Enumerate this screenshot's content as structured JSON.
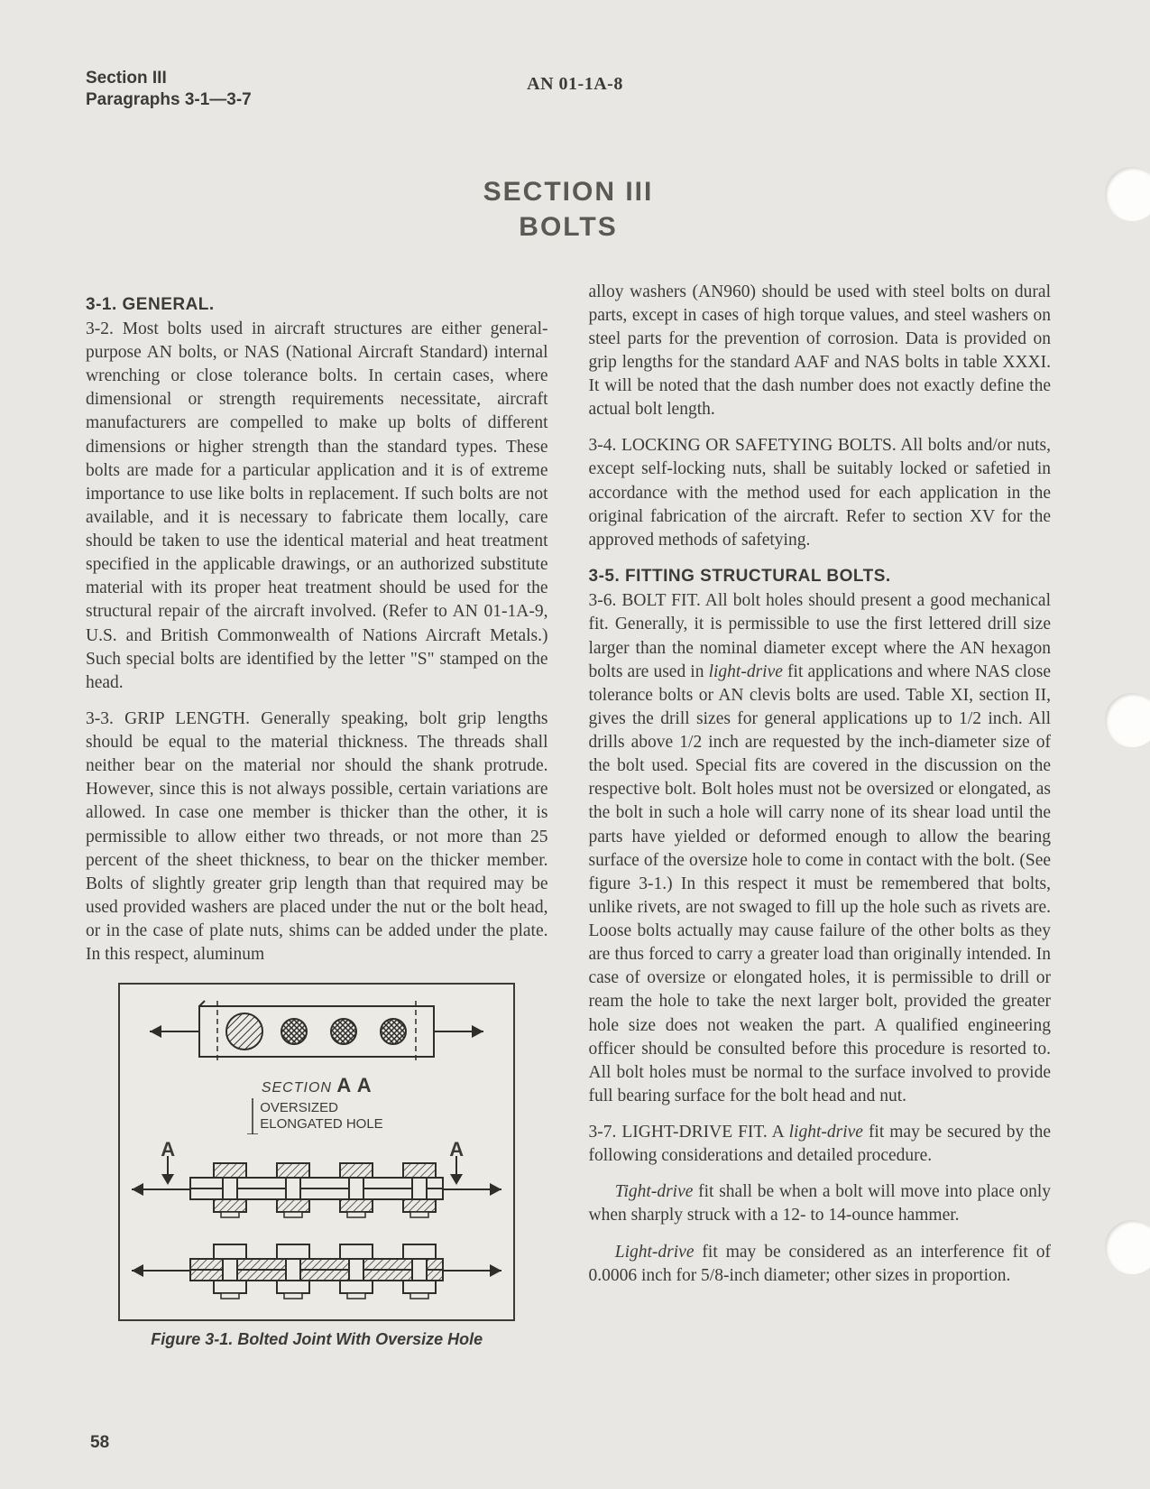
{
  "header": {
    "section_line1": "Section III",
    "section_line2": "Paragraphs 3-1—3-7",
    "doc_number": "AN 01-1A-8"
  },
  "page_number": "58",
  "section_title_line1": "SECTION III",
  "section_title_line2": "BOLTS",
  "paragraphs": {
    "h_3_1": "3-1. GENERAL.",
    "p_3_2": "3-2. Most bolts used in aircraft structures are either general-purpose AN bolts, or NAS (National Aircraft Standard) internal wrenching or close tolerance bolts. In certain cases, where dimensional or strength requirements necessitate, aircraft manufacturers are compelled to make up bolts of different dimensions or higher strength than the standard types. These bolts are made for a particular application and it is of extreme importance to use like bolts in replacement. If such bolts are not available, and it is necessary to fabricate them locally, care should be taken to use the identical material and heat treatment specified in the applicable drawings, or an authorized substitute material with its proper heat treatment should be used for the structural repair of the aircraft involved. (Refer to AN 01-1A-9, U.S. and British Commonwealth of Nations Aircraft Metals.) Such special bolts are identified by the letter \"S\" stamped on the head.",
    "p_3_3": "3-3. GRIP LENGTH. Generally speaking, bolt grip lengths should be equal to the material thickness. The threads shall neither bear on the material nor should the shank protrude. However, since this is not always possible, certain variations are allowed. In case one member is thicker than the other, it is permissible to allow either two threads, or not more than 25 percent of the sheet thickness, to bear on the thicker member. Bolts of slightly greater grip length than that required may be used provided washers are placed under the nut or the bolt head, or in the case of plate nuts, shims can be added under the plate. In this respect, aluminum",
    "p_3_3b": "alloy washers (AN960) should be used with steel bolts on dural parts, except in cases of high torque values, and steel washers on steel parts for the prevention of corrosion. Data is provided on grip lengths for the standard AAF and NAS bolts in table XXXI. It will be noted that the dash number does not exactly define the actual bolt length.",
    "p_3_4": "3-4. LOCKING OR SAFETYING BOLTS. All bolts and/or nuts, except self-locking nuts, shall be suitably locked or safetied in accordance with the method used for each application in the original fabrication of the aircraft. Refer to section XV for the approved methods of safetying.",
    "h_3_5": "3-5. FITTING STRUCTURAL BOLTS.",
    "p_3_6": "3-6. BOLT FIT. All bolt holes should present a good mechanical fit. Generally, it is permissible to use the first lettered drill size larger than the nominal diameter except where the AN hexagon bolts are used in light-drive fit applications and where NAS close tolerance bolts or AN clevis bolts are used. Table XI, section II, gives the drill sizes for general applications up to 1/2 inch. All drills above 1/2 inch are requested by the inch-diameter size of the bolt used. Special fits are covered in the discussion on the respective bolt. Bolt holes must not be oversized or elongated, as the bolt in such a hole will carry none of its shear load until the parts have yielded or deformed enough to allow the bearing surface of the oversize hole to come in contact with the bolt. (See figure 3-1.) In this respect it must be remembered that bolts, unlike rivets, are not swaged to fill up the hole such as rivets are. Loose bolts actually may cause failure of the other bolts as they are thus forced to carry a greater load than originally intended. In case of oversize or elongated holes, it is permissible to drill or ream the hole to take the next larger bolt, provided the greater hole size does not weaken the part. A qualified engineering officer should be consulted before this procedure is resorted to. All bolt holes must be normal to the surface involved to provide full bearing surface for the bolt head and nut.",
    "p_3_7a": "3-7. LIGHT-DRIVE FIT. A light-drive fit may be secured by the following considerations and detailed procedure.",
    "p_3_7b": "Tight-drive fit shall be when a bolt will move into place only when sharply struck with a 12- to 14-ounce hammer.",
    "p_3_7c": "Light-drive fit may be considered as an interference fit of 0.0006 inch for 5/8-inch diameter; other sizes in proportion."
  },
  "figure": {
    "section_label": "SECTION",
    "section_letters": "A A",
    "oversize_line1": "OVERSIZED",
    "oversize_line2": "ELONGATED HOLE",
    "marker_A": "A",
    "caption": "Figure 3-1. Bolted Joint With Oversize Hole"
  },
  "figure_style": {
    "stroke": "#2f2e2b",
    "hatch_color": "#2f2e2b",
    "bg": "#eceae4",
    "plate_fill": "#eceae4"
  }
}
